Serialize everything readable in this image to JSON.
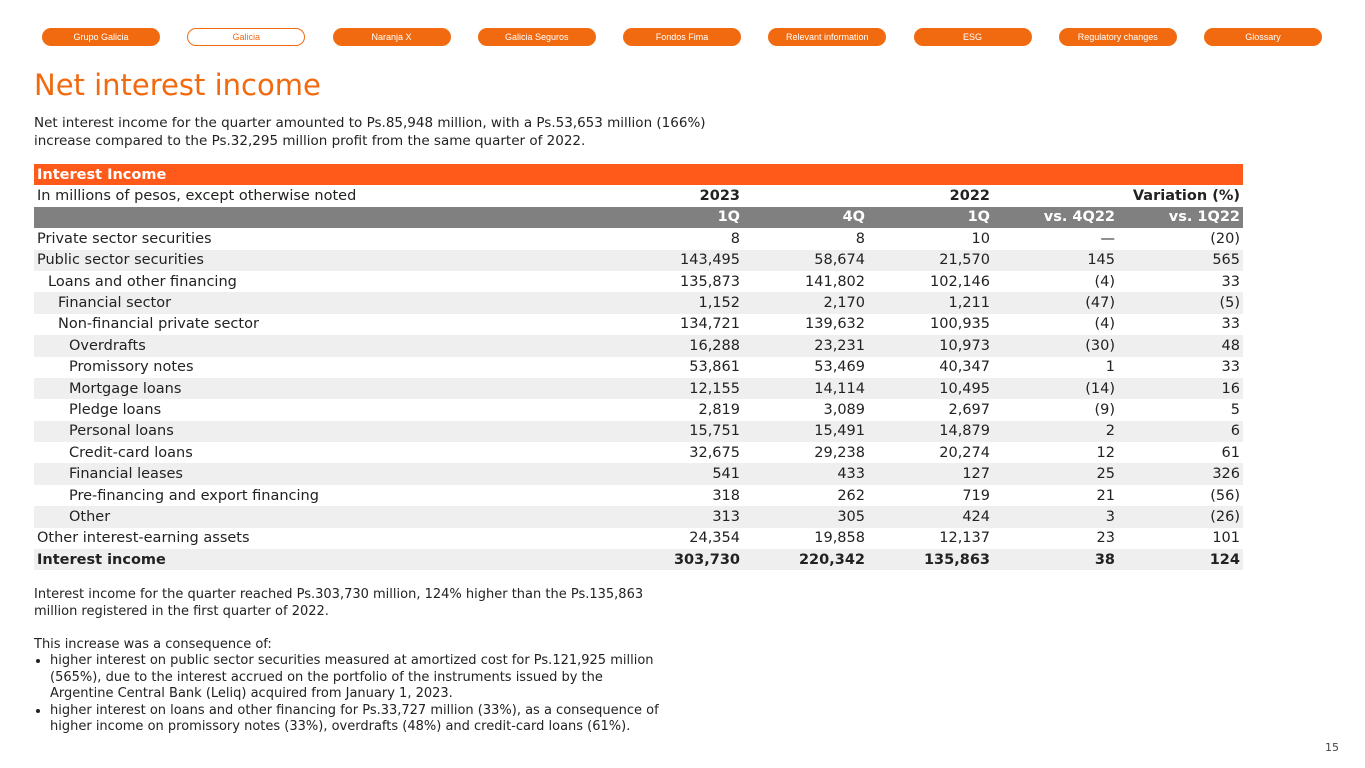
{
  "nav": [
    "Grupo Galicia",
    "Galicia",
    "Naranja X",
    "Galicia Seguros",
    "Fondos Fima",
    "Relevant information",
    "ESG",
    "Regulatory changes",
    "Glossary"
  ],
  "nav_active": "Galicia",
  "accent": "#f26a10",
  "title": "Net interest income",
  "intro": "Net interest income for the quarter amounted to Ps.85,948 million, with a Ps.53,653 million (166%) increase compared to the Ps.32,295 million profit from the same quarter of 2022.",
  "table": {
    "title": "Interest Income",
    "unit_note": "In millions of pesos, except otherwise noted",
    "year_2023": "2023",
    "year_2022": "2022",
    "variation": "Variation (%)",
    "columns": [
      "1Q",
      "4Q",
      "1Q",
      "vs. 4Q22",
      "vs. 1Q22"
    ],
    "rows": [
      {
        "label": "Private sector securities",
        "level": 0,
        "values": [
          "8",
          "8",
          "10",
          "—",
          "(20)"
        ]
      },
      {
        "label": "Public sector securities",
        "level": 0,
        "values": [
          "143,495",
          "58,674",
          "21,570",
          "145",
          "565"
        ]
      },
      {
        "label": "Loans and other financing",
        "level": 1,
        "values": [
          "135,873",
          "141,802",
          "102,146",
          "(4)",
          "33"
        ]
      },
      {
        "label": "Financial sector",
        "level": 2,
        "values": [
          "1,152",
          "2,170",
          "1,211",
          "(47)",
          "(5)"
        ]
      },
      {
        "label": "Non-financial private sector",
        "level": 2,
        "values": [
          "134,721",
          "139,632",
          "100,935",
          "(4)",
          "33"
        ]
      },
      {
        "label": "Overdrafts",
        "level": 3,
        "values": [
          "16,288",
          "23,231",
          "10,973",
          "(30)",
          "48"
        ]
      },
      {
        "label": "Promissory notes",
        "level": 3,
        "values": [
          "53,861",
          "53,469",
          "40,347",
          "1",
          "33"
        ]
      },
      {
        "label": "Mortgage loans",
        "level": 3,
        "values": [
          "12,155",
          "14,114",
          "10,495",
          "(14)",
          "16"
        ]
      },
      {
        "label": "Pledge loans",
        "level": 3,
        "values": [
          "2,819",
          "3,089",
          "2,697",
          "(9)",
          "5"
        ]
      },
      {
        "label": "Personal loans",
        "level": 3,
        "values": [
          "15,751",
          "15,491",
          "14,879",
          "2",
          "6"
        ]
      },
      {
        "label": "Credit-card loans",
        "level": 3,
        "values": [
          "32,675",
          "29,238",
          "20,274",
          "12",
          "61"
        ]
      },
      {
        "label": "Financial leases",
        "level": 3,
        "values": [
          "541",
          "433",
          "127",
          "25",
          "326"
        ]
      },
      {
        "label": "Pre-financing and export financing",
        "level": 3,
        "values": [
          "318",
          "262",
          "719",
          "21",
          "(56)"
        ]
      },
      {
        "label": "Other",
        "level": 3,
        "values": [
          "313",
          "305",
          "424",
          "3",
          "(26)"
        ]
      },
      {
        "label": "Other interest-earning assets",
        "level": 0,
        "values": [
          "24,354",
          "19,858",
          "12,137",
          "23",
          "101"
        ]
      },
      {
        "label": "Interest income",
        "level": 0,
        "bold": true,
        "values": [
          "303,730",
          "220,342",
          "135,863",
          "38",
          "124"
        ]
      }
    ]
  },
  "summary": "Interest income for the quarter reached Ps.303,730 million, 124% higher than the Ps.135,863 million registered in the first quarter of 2022.",
  "lead": "This increase was a consequence of:",
  "bullets": [
    "higher interest on public sector securities measured at amortized cost for Ps.121,925 million (565%), due to the interest accrued on the portfolio of the instruments issued by the Argentine Central Bank (Leliq) acquired from January 1, 2023.",
    "higher interest on loans and other financing for Ps.33,727 million (33%), as a consequence of higher income on promissory notes (33%), overdrafts (48%) and credit-card loans (61%)."
  ],
  "page_number": "15"
}
